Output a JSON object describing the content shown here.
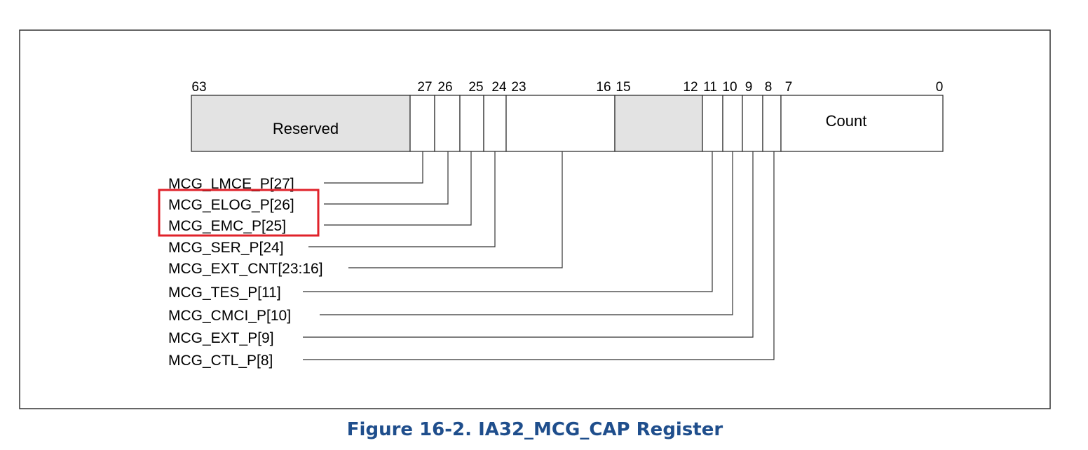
{
  "figure": {
    "caption": "Figure 16-2.  IA32_MCG_CAP Register",
    "accent_color": "#1f4e8c",
    "highlight_color": "#e0222a",
    "reserved_fill": "#e3e3e3"
  },
  "bit_numbers": [
    "63",
    "27",
    "26",
    "25",
    "24",
    "23",
    "16",
    "15",
    "12",
    "11",
    "10",
    "9",
    "8",
    "7",
    "0"
  ],
  "fields": [
    {
      "label": "Reserved",
      "reserved": true
    },
    {
      "label": "",
      "reserved": false
    },
    {
      "label": "",
      "reserved": false
    },
    {
      "label": "",
      "reserved": false
    },
    {
      "label": "",
      "reserved": false
    },
    {
      "label": "",
      "reserved": false
    },
    {
      "label": "",
      "reserved": true
    },
    {
      "label": "",
      "reserved": false
    },
    {
      "label": "",
      "reserved": false
    },
    {
      "label": "",
      "reserved": false
    },
    {
      "label": "",
      "reserved": false
    },
    {
      "label": "Count",
      "reserved": false
    }
  ],
  "signals": [
    {
      "label": "MCG_LMCE_P[27]",
      "highlighted": false
    },
    {
      "label": "MCG_ELOG_P[26]",
      "highlighted": true
    },
    {
      "label": "MCG_EMC_P[25]",
      "highlighted": true
    },
    {
      "label": "MCG_SER_P[24]",
      "highlighted": false
    },
    {
      "label": "MCG_EXT_CNT[23:16]",
      "highlighted": false
    },
    {
      "label": "MCG_TES_P[11]",
      "highlighted": false
    },
    {
      "label": "MCG_CMCI_P[10]",
      "highlighted": false
    },
    {
      "label": "MCG_EXT_P[9]",
      "highlighted": false
    },
    {
      "label": "MCG_CTL_P[8]",
      "highlighted": false
    }
  ]
}
